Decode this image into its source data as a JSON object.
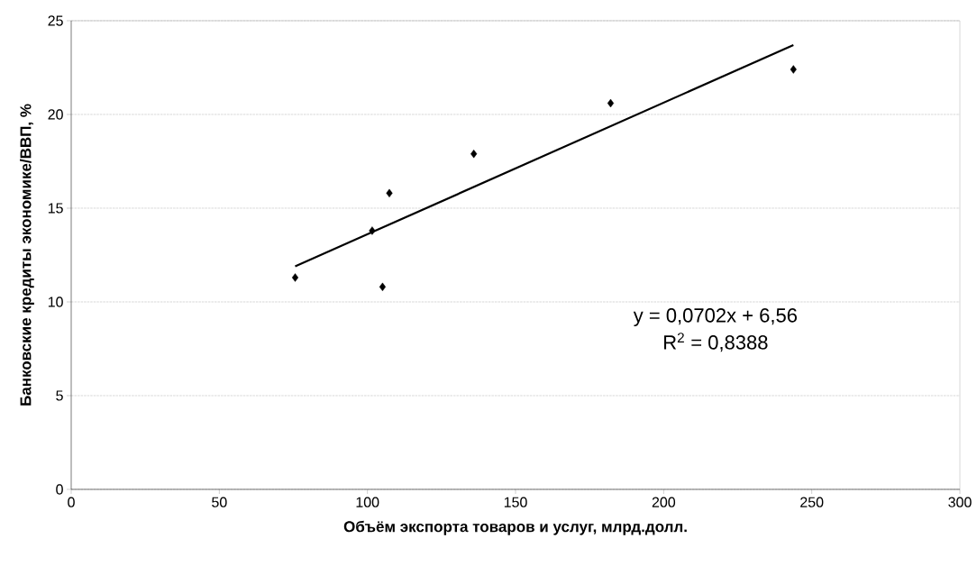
{
  "chart_data": {
    "type": "scatter",
    "xlabel": "Объём экспорта товаров и услуг, млрд.долл.",
    "ylabel": "Банковские кредиты экономике/ВВП, %",
    "xlim": [
      0,
      300
    ],
    "xticks": [
      0,
      50,
      100,
      150,
      200,
      250,
      300
    ],
    "ylim": [
      0,
      25
    ],
    "yticks": [
      0,
      5,
      10,
      15,
      20,
      25
    ],
    "grid": "y",
    "series": [
      {
        "marker": "diamond",
        "color": "#000000",
        "x": [
          75.6,
          101.6,
          105.1,
          107.4,
          135.9,
          182.1,
          243.8
        ],
        "values": [
          11.3,
          13.8,
          10.8,
          15.8,
          17.9,
          20.6,
          22.4
        ]
      },
      {
        "type": "line",
        "marker": "none",
        "color": "#000000",
        "x": [
          75.6,
          243.8
        ],
        "values": [
          11.9,
          23.7
        ]
      }
    ],
    "annotations": [
      "y = 0,0702x + 6,56",
      "R$^{2}$ = 0,8388"
    ]
  }
}
